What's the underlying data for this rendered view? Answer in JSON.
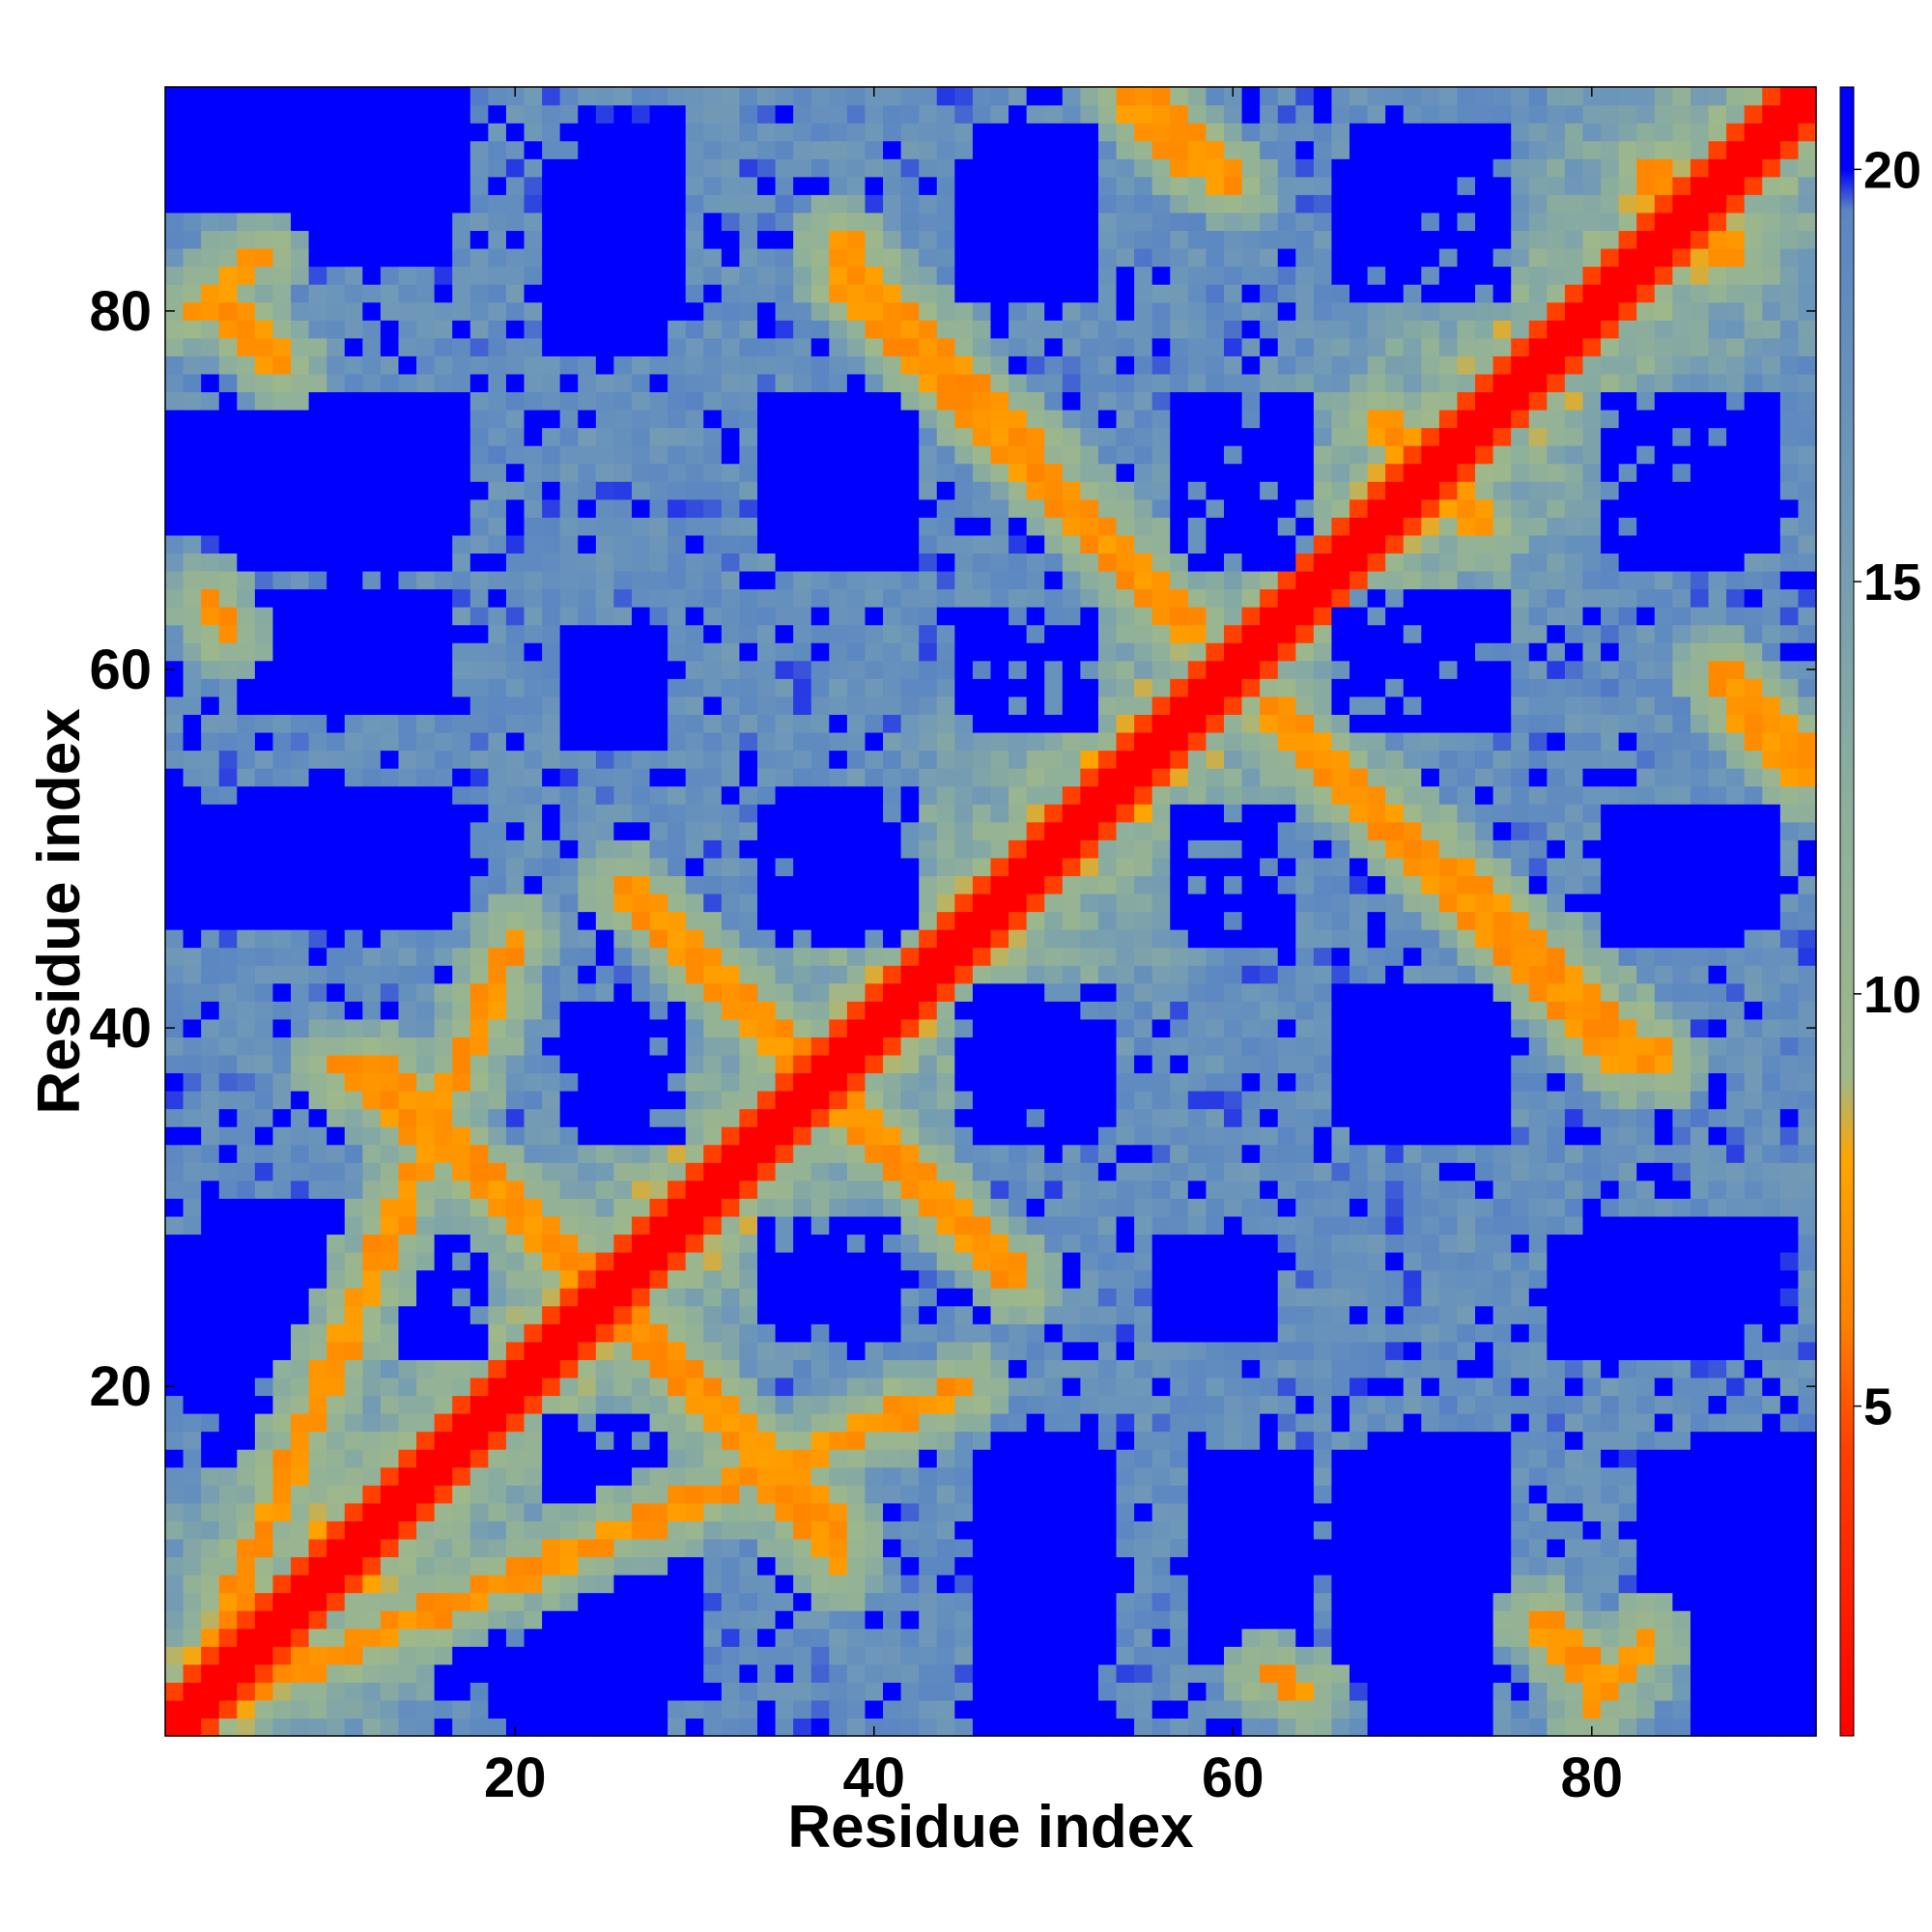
{
  "chart_data": {
    "type": "heatmap",
    "title": "",
    "xlabel": "Residue index",
    "ylabel": "Residue index",
    "n_residues": 92,
    "xlim": [
      1,
      92
    ],
    "ylim": [
      1,
      92
    ],
    "x_ticks": [
      20,
      40,
      60,
      80
    ],
    "y_ticks": [
      20,
      40,
      60,
      80
    ],
    "x_tick_labels": [
      "20",
      "40",
      "60",
      "80"
    ],
    "y_tick_labels": [
      "20",
      "40",
      "60",
      "80"
    ],
    "colorbar": {
      "range": [
        1,
        21
      ],
      "ticks": [
        5,
        10,
        15,
        20
      ],
      "tick_labels": [
        "5",
        "10",
        "15",
        "20"
      ],
      "stops": [
        {
          "value": 1,
          "color": "#ff0000"
        },
        {
          "value": 4.5,
          "color": "#ff4000"
        },
        {
          "value": 6,
          "color": "#ff8000"
        },
        {
          "value": 8,
          "color": "#ffa500"
        },
        {
          "value": 9,
          "color": "#9fb88a"
        },
        {
          "value": 12,
          "color": "#8fb09a"
        },
        {
          "value": 16,
          "color": "#6f98b8"
        },
        {
          "value": 19.5,
          "color": "#5b86c2"
        },
        {
          "value": 20,
          "color": "#0000ff"
        },
        {
          "value": 21,
          "color": "#0000ff"
        }
      ]
    },
    "diagonal": {
      "from": 1,
      "to": 92,
      "value": 1
    },
    "contact_bands": [
      {
        "type": "antiparallel",
        "from": [
          5,
          3
        ],
        "to": [
          45,
          20
        ],
        "value": 7
      },
      {
        "type": "antiparallel",
        "from": [
          2,
          80
        ],
        "to": [
          6,
          83
        ],
        "value": 7
      },
      {
        "type": "antiparallel",
        "from": [
          10,
          38
        ],
        "to": [
          28,
          23
        ],
        "value": 7
      },
      {
        "type": "antiparallel",
        "from": [
          26,
          48
        ],
        "to": [
          36,
          38
        ],
        "value": 7
      },
      {
        "type": "antiparallel",
        "from": [
          36,
          38
        ],
        "to": [
          48,
          26
        ],
        "value": 7
      },
      {
        "type": "antiparallel",
        "from": [
          26,
          24
        ],
        "to": [
          38,
          12
        ],
        "value": 7
      },
      {
        "type": "antiparallel",
        "from": [
          38,
          84
        ],
        "to": [
          58,
          62
        ],
        "value": 7
      },
      {
        "type": "antiparallel",
        "from": [
          54,
          92
        ],
        "to": [
          58,
          88
        ],
        "value": 7
      },
      {
        "type": "antiparallel",
        "from": [
          62,
          58
        ],
        "to": [
          82,
          38
        ],
        "value": 7
      },
      {
        "type": "antiparallel",
        "from": [
          70,
          72
        ],
        "to": [
          74,
          68
        ],
        "value": 7
      },
      {
        "type": "antiparallel",
        "from": [
          83,
          88
        ],
        "to": [
          88,
          83
        ],
        "value": 7
      },
      {
        "type": "antiparallel",
        "from": [
          87,
          60
        ],
        "to": [
          92,
          55
        ],
        "value": 7
      },
      {
        "type": "antiparallel",
        "from": [
          77,
          7
        ],
        "to": [
          81,
          3
        ],
        "value": 7
      },
      {
        "type": "antiparallel",
        "from": [
          62,
          4
        ],
        "to": [
          64,
          3
        ],
        "value": 7
      }
    ],
    "far_blocks": [
      {
        "x": [
          16,
          30
        ],
        "y": [
          3,
          10
        ]
      },
      {
        "x": [
          22,
          29
        ],
        "y": [
          11,
          18
        ]
      },
      {
        "x": [
          46,
          53
        ],
        "y": [
          5,
          16
        ]
      },
      {
        "x": [
          58,
          64
        ],
        "y": [
          5,
          16
        ]
      },
      {
        "x": [
          66,
          74
        ],
        "y": [
          5,
          16
        ]
      },
      {
        "x": [
          83,
          92
        ],
        "y": [
          5,
          16
        ]
      },
      {
        "x": [
          1,
          6
        ],
        "y": [
          20,
          28
        ]
      },
      {
        "x": [
          8,
          17
        ],
        "y": [
          22,
          29
        ]
      },
      {
        "x": [
          34,
          41
        ],
        "y": [
          23,
          29
        ]
      },
      {
        "x": [
          56,
          62
        ],
        "y": [
          23,
          28
        ]
      },
      {
        "x": [
          78,
          88
        ],
        "y": [
          22,
          28
        ]
      },
      {
        "x": [
          23,
          29
        ],
        "y": [
          34,
          41
        ]
      },
      {
        "x": [
          46,
          53
        ],
        "y": [
          35,
          42
        ]
      },
      {
        "x": [
          66,
          74
        ],
        "y": [
          35,
          42
        ]
      },
      {
        "x": [
          1,
          6
        ],
        "y": [
          46,
          52
        ]
      },
      {
        "x": [
          8,
          17
        ],
        "y": [
          47,
          52
        ]
      },
      {
        "x": [
          34,
          41
        ],
        "y": [
          45,
          52
        ]
      },
      {
        "x": [
          58,
          63
        ],
        "y": [
          45,
          52
        ]
      },
      {
        "x": [
          81,
          88
        ],
        "y": [
          45,
          52
        ]
      },
      {
        "x": [
          8,
          16
        ],
        "y": [
          58,
          63
        ]
      },
      {
        "x": [
          24,
          27
        ],
        "y": [
          57,
          62
        ]
      },
      {
        "x": [
          46,
          52
        ],
        "y": [
          57,
          63
        ]
      },
      {
        "x": [
          68,
          75
        ],
        "y": [
          57,
          63
        ]
      },
      {
        "x": [
          1,
          6
        ],
        "y": [
          68,
          74
        ]
      },
      {
        "x": [
          9,
          17
        ],
        "y": [
          68,
          75
        ]
      },
      {
        "x": [
          34,
          41
        ],
        "y": [
          67,
          75
        ]
      },
      {
        "x": [
          57,
          64
        ],
        "y": [
          66,
          75
        ]
      },
      {
        "x": [
          81,
          88
        ],
        "y": [
          66,
          75
        ]
      },
      {
        "x": [
          1,
          6
        ],
        "y": [
          86,
          92
        ]
      },
      {
        "x": [
          8,
          17
        ],
        "y": [
          86,
          92
        ]
      },
      {
        "x": [
          24,
          29
        ],
        "y": [
          80,
          90
        ]
      },
      {
        "x": [
          46,
          52
        ],
        "y": [
          82,
          90
        ]
      },
      {
        "x": [
          67,
          75
        ],
        "y": [
          82,
          90
        ]
      }
    ],
    "notes": "Symmetric residue-residue distance map; values read approximately from color; color scale saturates blue above 20 and red below ~4."
  }
}
